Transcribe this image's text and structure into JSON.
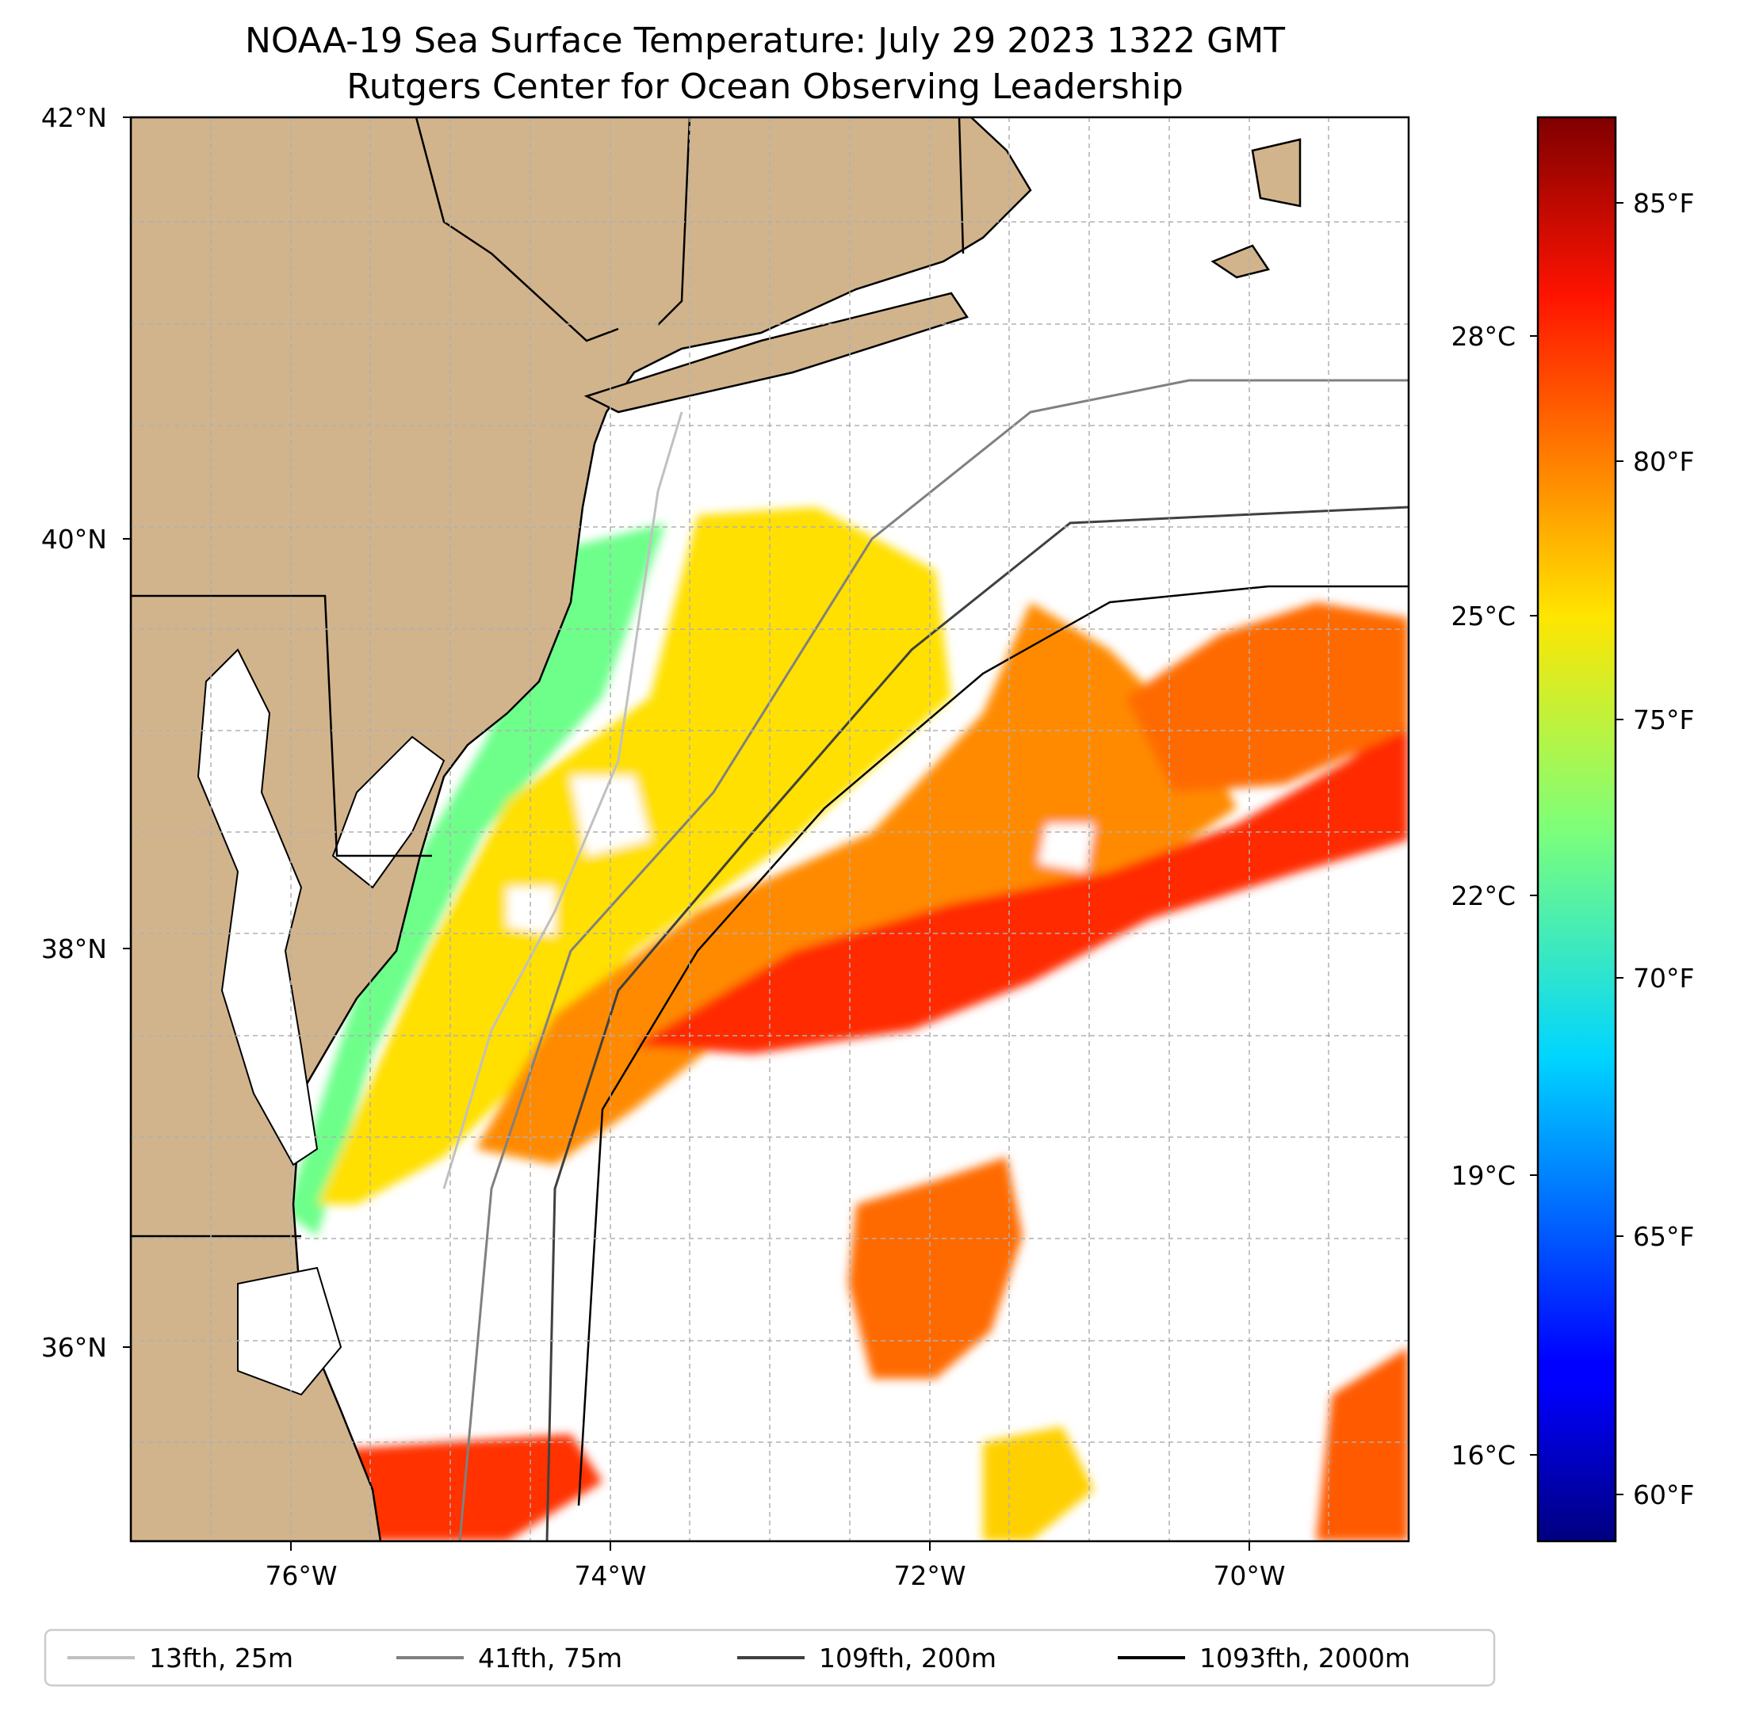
{
  "title": {
    "line1": "NOAA-19 Sea Surface Temperature: July 29 2023 1322 GMT",
    "line2": "Rutgers Center for Ocean Observing Leadership"
  },
  "map": {
    "lat_range": [
      35.0,
      42.0
    ],
    "lon_range": [
      -76.75,
      -68.75
    ],
    "lat_ticks": [
      "42°N",
      "40°N",
      "38°N",
      "36°N"
    ],
    "lon_ticks": [
      "76°W",
      "74°W",
      "72°W",
      "70°W"
    ],
    "grid": true,
    "land_color": "#D2B48C"
  },
  "colorbar": {
    "colormap": "jet",
    "f_ticks": [
      "85°F",
      "80°F",
      "75°F",
      "70°F",
      "65°F",
      "60°F"
    ],
    "c_ticks": [
      "28°C",
      "25°C",
      "22°C",
      "19°C",
      "16°C"
    ]
  },
  "legend": {
    "placement": "bottom",
    "items": [
      {
        "label": "13fth, 25m",
        "color": "#c0c0c0"
      },
      {
        "label": "41fth, 75m",
        "color": "#808080"
      },
      {
        "label": "109fth, 200m",
        "color": "#404040"
      },
      {
        "label": "1093fth, 2000m",
        "color": "#000000"
      }
    ]
  }
}
